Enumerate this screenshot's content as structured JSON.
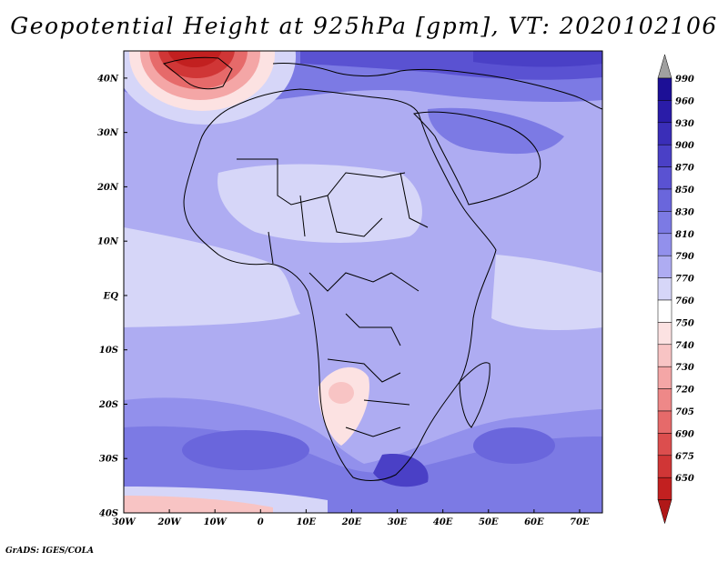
{
  "title": "Geopotential Height at 925hPa [gpm], VT: 2020102106",
  "footer": "GrADS: IGES/COLA",
  "map": {
    "lat_labels": [
      "40N",
      "30N",
      "20N",
      "10N",
      "EQ",
      "10S",
      "20S",
      "30S",
      "40S"
    ],
    "lat_values": [
      40,
      30,
      20,
      10,
      0,
      -10,
      -20,
      -30,
      -40
    ],
    "lon_labels": [
      "30W",
      "20W",
      "10W",
      "0",
      "10E",
      "20E",
      "30E",
      "40E",
      "50E",
      "60E",
      "70E"
    ],
    "lon_values": [
      -30,
      -20,
      -10,
      0,
      10,
      20,
      30,
      40,
      50,
      60,
      70
    ],
    "extent": {
      "lon_min": -30,
      "lon_max": 75,
      "lat_min": -40,
      "lat_max": 45
    }
  },
  "colorbar": {
    "top_arrow_color": "#a0a0a0",
    "bottom_arrow_color": "#b01818",
    "levels": [
      {
        "label": "990",
        "color": "#1c0f96"
      },
      {
        "label": "960",
        "color": "#2a1ca8"
      },
      {
        "label": "930",
        "color": "#3a2eb8"
      },
      {
        "label": "900",
        "color": "#4a40c6"
      },
      {
        "label": "870",
        "color": "#5a52d2"
      },
      {
        "label": "850",
        "color": "#6a66dc"
      },
      {
        "label": "830",
        "color": "#7c7ae4"
      },
      {
        "label": "810",
        "color": "#9290ec"
      },
      {
        "label": "790",
        "color": "#aeacf2"
      },
      {
        "label": "770",
        "color": "#d6d6f8"
      },
      {
        "label": "760",
        "color": "#ffffff"
      },
      {
        "label": "750",
        "color": "#fce2e2"
      },
      {
        "label": "740",
        "color": "#f8c4c4"
      },
      {
        "label": "730",
        "color": "#f4a6a6"
      },
      {
        "label": "720",
        "color": "#ee8888"
      },
      {
        "label": "705",
        "color": "#e66a6a"
      },
      {
        "label": "690",
        "color": "#dc4e4e"
      },
      {
        "label": "675",
        "color": "#d03636"
      },
      {
        "label": "650",
        "color": "#c22020"
      }
    ]
  }
}
